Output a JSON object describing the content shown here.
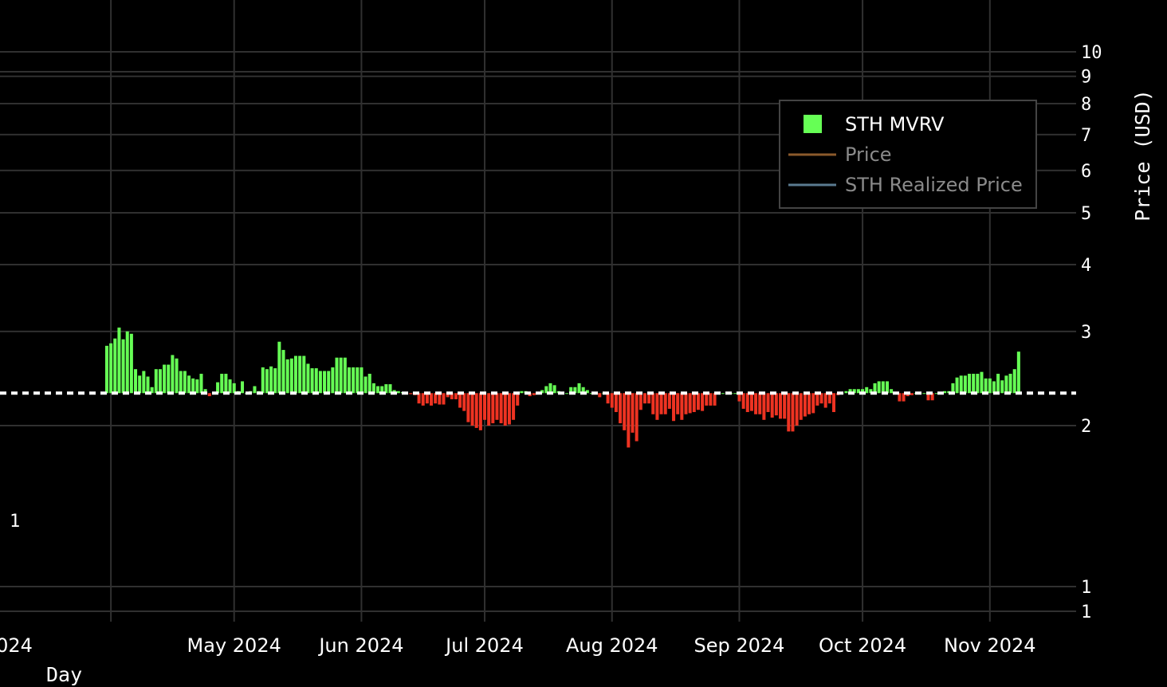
{
  "chart_data": {
    "type": "bar",
    "x_axis": {
      "title": "Day",
      "tick_labels": [
        "024",
        "May 2024",
        "Jun 2024",
        "Jul 2024",
        "Aug 2024",
        "Sep 2024",
        "Oct 2024",
        "Nov 2024"
      ],
      "tick_dates": [
        "2024-04-01",
        "2024-05-01",
        "2024-06-01",
        "2024-07-01",
        "2024-08-01",
        "2024-09-01",
        "2024-10-01",
        "2024-11-01"
      ],
      "range": [
        "2024-03-05",
        "2024-11-22"
      ]
    },
    "y_axis_right": {
      "title": "Price (USD)",
      "scale": "log",
      "tick_labels": [
        "10",
        "9",
        "8",
        "7",
        "6",
        "5",
        "4",
        "3",
        "2",
        "1",
        "1"
      ],
      "tick_values": [
        10,
        9,
        8,
        7,
        6,
        5,
        4,
        3,
        2,
        1.2,
        1
      ]
    },
    "y_axis_left": {
      "tick_labels": [
        "1"
      ],
      "tick_values": [
        1
      ]
    },
    "baseline": 2.3,
    "baseline_style": "dashed white",
    "grid": true,
    "legend": {
      "placement": "top-right",
      "entries": [
        {
          "name": "STH MVRV",
          "symbol": "square",
          "color": "#66ff55",
          "active": true
        },
        {
          "name": "Price",
          "symbol": "line",
          "color": "#8b5a2b",
          "active": false
        },
        {
          "name": "STH Realized Price",
          "symbol": "line",
          "color": "#5a7a90",
          "active": false
        }
      ]
    },
    "colors": {
      "positive": "#66ff55",
      "negative": "#ee3322",
      "background": "#000000"
    },
    "series": [
      {
        "name": "STH MVRV",
        "start_date": "2024-03-31",
        "step_days": 1,
        "values": [
          2.82,
          2.85,
          2.91,
          3.05,
          2.9,
          3.0,
          2.97,
          2.55,
          2.48,
          2.53,
          2.47,
          2.36,
          2.55,
          2.55,
          2.6,
          2.6,
          2.71,
          2.67,
          2.53,
          2.53,
          2.48,
          2.45,
          2.44,
          2.5,
          2.34,
          2.27,
          2.31,
          2.41,
          2.5,
          2.5,
          2.44,
          2.4,
          2.32,
          2.42,
          2.3,
          2.32,
          2.37,
          2.32,
          2.57,
          2.55,
          2.58,
          2.56,
          2.87,
          2.77,
          2.66,
          2.67,
          2.7,
          2.7,
          2.7,
          2.61,
          2.56,
          2.56,
          2.53,
          2.53,
          2.53,
          2.57,
          2.68,
          2.68,
          2.68,
          2.57,
          2.57,
          2.57,
          2.57,
          2.47,
          2.5,
          2.4,
          2.37,
          2.37,
          2.39,
          2.39,
          2.33,
          2.32,
          2.31,
          2.29,
          2.29,
          2.28,
          2.2,
          2.18,
          2.2,
          2.18,
          2.2,
          2.19,
          2.19,
          2.26,
          2.24,
          2.24,
          2.16,
          2.13,
          2.03,
          2.0,
          1.98,
          1.96,
          2.05,
          2.0,
          2.02,
          2.05,
          2.02,
          2.0,
          2.01,
          2.05,
          2.18,
          2.32,
          2.32,
          2.27,
          2.28,
          2.3,
          2.33,
          2.37,
          2.4,
          2.38,
          2.32,
          2.3,
          2.3,
          2.36,
          2.36,
          2.4,
          2.36,
          2.33,
          2.3,
          2.3,
          2.26,
          2.3,
          2.2,
          2.16,
          2.12,
          2.02,
          1.96,
          1.82,
          1.94,
          1.87,
          2.14,
          2.2,
          2.2,
          2.1,
          2.05,
          2.1,
          2.1,
          2.15,
          2.04,
          2.1,
          2.05,
          2.1,
          2.11,
          2.12,
          2.14,
          2.13,
          2.18,
          2.18,
          2.18,
          2.3,
          2.3,
          2.3,
          2.3,
          2.3,
          2.22,
          2.15,
          2.12,
          2.13,
          2.1,
          2.1,
          2.05,
          2.12,
          2.07,
          2.09,
          2.06,
          2.06,
          1.95,
          1.95,
          2.0,
          2.05,
          2.08,
          2.1,
          2.11,
          2.18,
          2.2,
          2.16,
          2.2,
          2.12,
          2.28,
          2.3,
          2.32,
          2.34,
          2.34,
          2.34,
          2.34,
          2.36,
          2.34,
          2.4,
          2.42,
          2.42,
          2.42,
          2.34,
          2.3,
          2.22,
          2.22,
          2.27,
          2.28,
          2.3,
          2.3,
          2.3,
          2.23,
          2.23,
          2.3,
          2.3,
          2.32,
          2.32,
          2.4,
          2.46,
          2.48,
          2.48,
          2.5,
          2.5,
          2.5,
          2.52,
          2.45,
          2.45,
          2.42,
          2.5,
          2.43,
          2.48,
          2.5,
          2.55,
          2.75
        ]
      }
    ]
  }
}
